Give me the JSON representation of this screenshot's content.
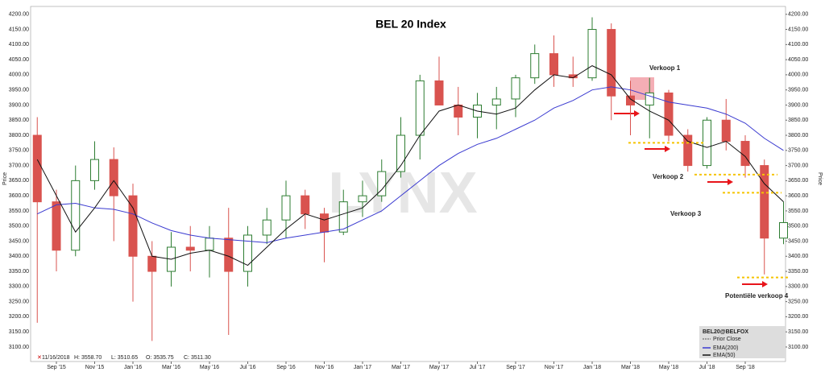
{
  "chart_data": {
    "type": "candlestick",
    "title": "BEL 20 Index",
    "categories": [
      null,
      "Sep '15",
      null,
      "Nov '15",
      null,
      "Jan '16",
      null,
      "Mar '16",
      null,
      "May '16",
      null,
      "Jul '16",
      null,
      "Sep '16",
      null,
      "Nov '16",
      null,
      "Jan '17",
      null,
      "Mar '17",
      null,
      "May '17",
      null,
      "Jul '17",
      null,
      "Sep '17",
      null,
      "Nov '17",
      null,
      "Jan '18",
      null,
      "Mar '18",
      null,
      "May '18",
      null,
      "Jul '18",
      null,
      "Sep '18",
      null,
      null
    ],
    "ohlc": [
      [
        3800,
        3860,
        3180,
        3580
      ],
      [
        3580,
        3620,
        3350,
        3420
      ],
      [
        3420,
        3700,
        3400,
        3650
      ],
      [
        3650,
        3780,
        3620,
        3720
      ],
      [
        3720,
        3760,
        3450,
        3600
      ],
      [
        3600,
        3640,
        3250,
        3400
      ],
      [
        3400,
        3450,
        3120,
        3350
      ],
      [
        3350,
        3480,
        3300,
        3430
      ],
      [
        3430,
        3500,
        3350,
        3420
      ],
      [
        3420,
        3500,
        3330,
        3460
      ],
      [
        3460,
        3560,
        3140,
        3350
      ],
      [
        3350,
        3500,
        3300,
        3470
      ],
      [
        3470,
        3560,
        3440,
        3520
      ],
      [
        3520,
        3650,
        3460,
        3600
      ],
      [
        3600,
        3620,
        3490,
        3540
      ],
      [
        3540,
        3560,
        3380,
        3480
      ],
      [
        3480,
        3620,
        3470,
        3580
      ],
      [
        3580,
        3650,
        3530,
        3600
      ],
      [
        3600,
        3720,
        3580,
        3680
      ],
      [
        3680,
        3860,
        3660,
        3800
      ],
      [
        3800,
        4000,
        3720,
        3980
      ],
      [
        3980,
        4060,
        3900,
        3900
      ],
      [
        3900,
        3960,
        3800,
        3860
      ],
      [
        3860,
        3940,
        3790,
        3900
      ],
      [
        3900,
        3960,
        3820,
        3920
      ],
      [
        3920,
        4000,
        3860,
        3990
      ],
      [
        3990,
        4100,
        3970,
        4070
      ],
      [
        4070,
        4130,
        3960,
        4000
      ],
      [
        4000,
        4060,
        3960,
        3990
      ],
      [
        3990,
        4190,
        3980,
        4150
      ],
      [
        4150,
        4170,
        3850,
        3930
      ],
      [
        3930,
        3980,
        3800,
        3900
      ],
      [
        3900,
        3990,
        3790,
        3940
      ],
      [
        3940,
        3950,
        3780,
        3800
      ],
      [
        3800,
        3820,
        3680,
        3700
      ],
      [
        3700,
        3860,
        3690,
        3850
      ],
      [
        3850,
        3920,
        3750,
        3780
      ],
      [
        3780,
        3800,
        3660,
        3700
      ],
      [
        3700,
        3720,
        3340,
        3460
      ],
      [
        3460,
        3580,
        3440,
        3511.3
      ]
    ],
    "up_color": "#2e7d32",
    "down_color": "#d9534f",
    "series": [
      {
        "name": "EMA(200)",
        "color": "#3a3ad0",
        "values": [
          3540,
          3570,
          3575,
          3560,
          3555,
          3540,
          3510,
          3485,
          3470,
          3460,
          3455,
          3450,
          3445,
          3460,
          3470,
          3480,
          3490,
          3520,
          3550,
          3600,
          3650,
          3700,
          3740,
          3770,
          3790,
          3820,
          3850,
          3890,
          3915,
          3950,
          3960,
          3950,
          3930,
          3910,
          3900,
          3890,
          3870,
          3840,
          3790,
          3750
        ]
      },
      {
        "name": "EMA(50)",
        "color": "#111111",
        "values": [
          3720,
          3600,
          3480,
          3560,
          3650,
          3560,
          3400,
          3390,
          3410,
          3420,
          3400,
          3370,
          3430,
          3490,
          3540,
          3520,
          3540,
          3560,
          3620,
          3700,
          3800,
          3880,
          3900,
          3880,
          3870,
          3890,
          3950,
          4000,
          3990,
          4030,
          4000,
          3920,
          3880,
          3850,
          3780,
          3760,
          3780,
          3730,
          3640,
          3580
        ]
      }
    ],
    "levels": [
      {
        "label": "Verkoop 1",
        "value": 3775
      },
      {
        "label": "Verkoop 2",
        "value": 3670
      },
      {
        "label": "Verkoop 3",
        "value": 3610
      },
      {
        "label": "Potentiële verkoop 4",
        "value": 3330
      }
    ],
    "level_color": "#f5c400",
    "ylabel": "Price",
    "ylim": [
      3052,
      4226
    ],
    "yticks": [
      {
        "value": 3100,
        "label": "3100.00"
      },
      {
        "value": 3150,
        "label": "3150.00"
      },
      {
        "value": 3200,
        "label": "3200.00"
      },
      {
        "value": 3250,
        "label": "3250.00"
      },
      {
        "value": 3300,
        "label": "3300.00"
      },
      {
        "value": 3350,
        "label": "3350.00"
      },
      {
        "value": 3400,
        "label": "3400.00"
      },
      {
        "value": 3450,
        "label": "3450.00"
      },
      {
        "value": 3500,
        "label": "3500.00"
      },
      {
        "value": 3550,
        "label": "3550.00"
      },
      {
        "value": 3600,
        "label": "3600.00"
      },
      {
        "value": 3650,
        "label": "3650.00"
      },
      {
        "value": 3700,
        "label": "3700.00"
      },
      {
        "value": 3750,
        "label": "3750.00"
      },
      {
        "value": 3800,
        "label": "3800.00"
      },
      {
        "value": 3850,
        "label": "3850.00"
      },
      {
        "value": 3900,
        "label": "3900.00"
      },
      {
        "value": 3950,
        "label": "3950.00"
      },
      {
        "value": 4000,
        "label": "4000.00"
      },
      {
        "value": 4050,
        "label": "4050.00"
      },
      {
        "value": 4100,
        "label": "4100.00"
      },
      {
        "value": 4150,
        "label": "4150.00"
      },
      {
        "value": 4200,
        "label": "4200.00"
      }
    ],
    "watermark": "LYNX",
    "legend": {
      "symbol": "BEL20@BELFOX",
      "prior": "Prior Close"
    },
    "footer": {
      "date": "11/16/2018",
      "high": "H: 3558.70",
      "low": "L: 3510.65",
      "open": "O: 3535.75",
      "close": "C: 3511.30"
    }
  }
}
